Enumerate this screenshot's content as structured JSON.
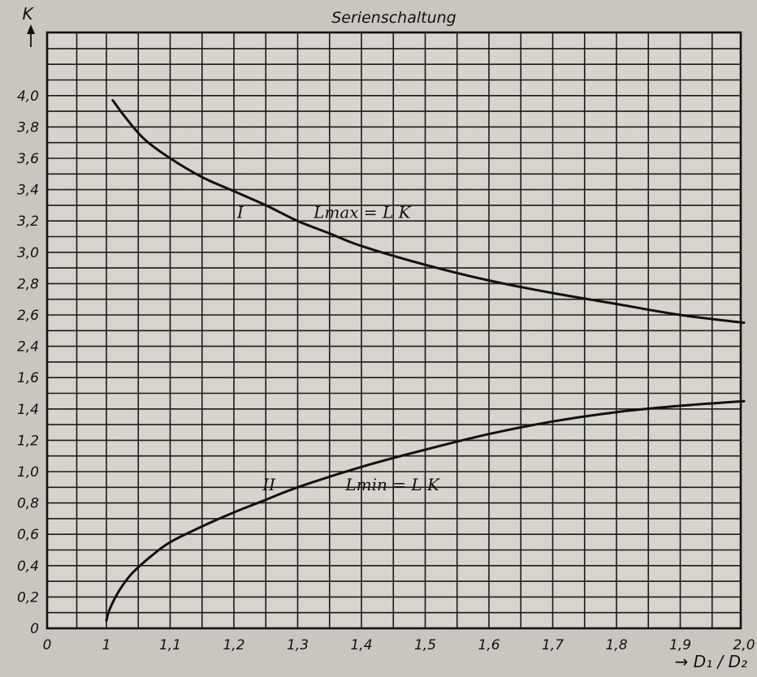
{
  "chart_data": {
    "type": "line",
    "title": "Serienschaltung",
    "xlabel": "→ D₁ / D₂",
    "ylabel": "K",
    "xlim": [
      0,
      2.0
    ],
    "ylim": [
      0,
      4.0
    ],
    "y_axis_break": [
      1.7,
      2.3
    ],
    "grid": true,
    "x_ticks": [
      "0",
      "1",
      "1,1",
      "1,2",
      "1,3",
      "1,4",
      "1,5",
      "1,6",
      "1,7",
      "1,8",
      "1,9",
      "2,0"
    ],
    "y_ticks": [
      "0",
      "0,2",
      "0,4",
      "0,6",
      "0,8",
      "1,0",
      "1,2",
      "1,4",
      "1,6",
      "2,4",
      "2,6",
      "2,8",
      "3,0",
      "3,2",
      "3,4",
      "3,6",
      "3,8",
      "4,0"
    ],
    "series": [
      {
        "name": "I",
        "annotation": "Lmax = L K",
        "x": [
          1.01,
          1.03,
          1.06,
          1.1,
          1.15,
          1.2,
          1.25,
          1.3,
          1.35,
          1.4,
          1.5,
          1.6,
          1.7,
          1.8,
          1.9,
          2.0
        ],
        "y": [
          3.97,
          3.86,
          3.72,
          3.6,
          3.48,
          3.39,
          3.3,
          3.2,
          3.12,
          3.04,
          2.92,
          2.82,
          2.74,
          2.67,
          2.6,
          2.55
        ]
      },
      {
        "name": "II",
        "annotation": "Lmin = L K",
        "x": [
          1.0,
          1.005,
          1.02,
          1.04,
          1.07,
          1.1,
          1.15,
          1.2,
          1.25,
          1.3,
          1.4,
          1.5,
          1.6,
          1.7,
          1.8,
          1.9,
          2.0
        ],
        "y": [
          0.05,
          0.12,
          0.24,
          0.35,
          0.46,
          0.55,
          0.65,
          0.74,
          0.82,
          0.9,
          1.03,
          1.14,
          1.24,
          1.32,
          1.38,
          1.42,
          1.45
        ]
      }
    ]
  }
}
